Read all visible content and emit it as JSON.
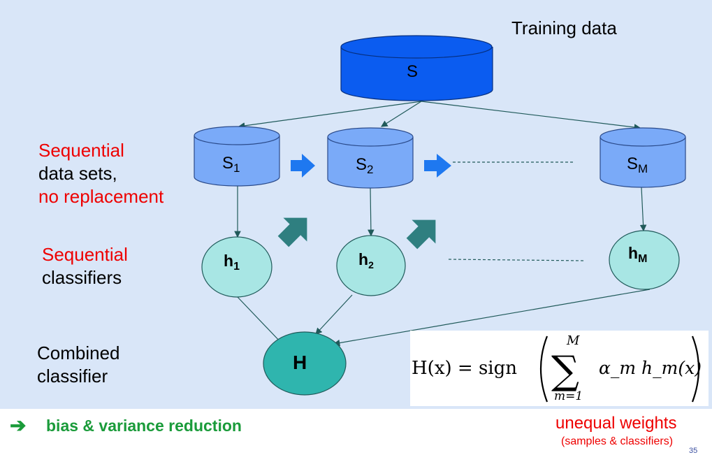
{
  "title": "Training data",
  "nodes": {
    "S": "S",
    "S1": {
      "base": "S",
      "sub": "1"
    },
    "S2": {
      "base": "S",
      "sub": "2"
    },
    "SM": {
      "base": "S",
      "sub": "M"
    },
    "h1": {
      "base": "h",
      "sub": "1"
    },
    "h2": {
      "base": "h",
      "sub": "2"
    },
    "hM": {
      "base": "h",
      "sub": "M"
    },
    "H": "H"
  },
  "labels": {
    "sequential_data_red": "Sequential",
    "data_sets": "data sets,",
    "no_replacement": "no replacement",
    "sequential_classifiers_red": "Sequential",
    "classifiers": "classifiers",
    "combined": "Combined",
    "combined_classifier": "classifier"
  },
  "formula": {
    "lhs": "H(x) = sign",
    "sum_top": "M",
    "sum_bottom": "m=1",
    "term": "α_m h_m(x)"
  },
  "footer": {
    "arrow": "➔",
    "bias_text": "bias & variance reduction",
    "unequal": "unequal weights",
    "unequal_sub": "(samples & classifiers)",
    "page": "35"
  },
  "colors": {
    "background": "#d9e6f8",
    "main_cylinder": "#0b5cf0",
    "sub_cylinder": "#7aaaf8",
    "classifier": "#a8e6e4",
    "combined": "#2fb5ae",
    "big_arrow": "#2f7f80",
    "blue_arrow": "#1e78f0",
    "red": "#ee0000",
    "green": "#1a9b3a"
  }
}
